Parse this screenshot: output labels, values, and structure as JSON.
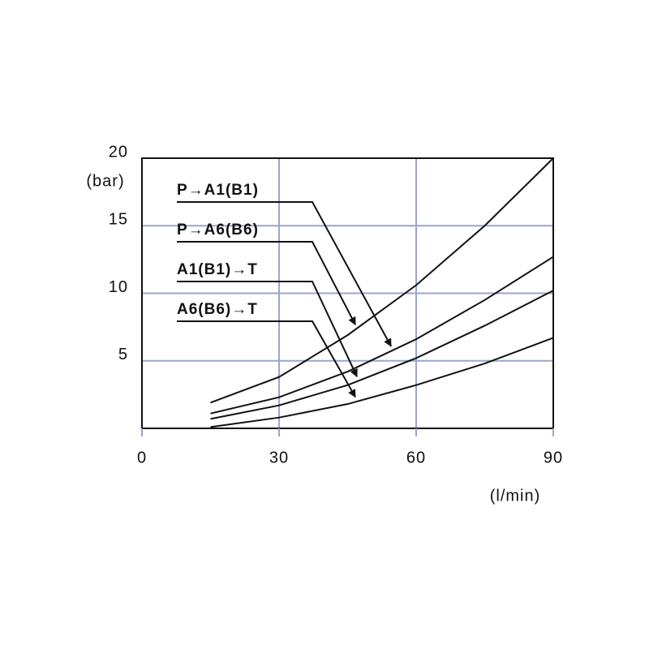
{
  "chart_data": {
    "type": "line",
    "x_label": "(l/min)",
    "y_label": "(bar)",
    "x": [
      15,
      30,
      45,
      60,
      75,
      90
    ],
    "series": [
      {
        "name": "P→A6(B6)",
        "color": "#111111",
        "values": [
          1.9,
          3.8,
          6.9,
          10.6,
          15.0,
          20
        ]
      },
      {
        "name": "P→A1(B1)",
        "color": "#111111",
        "values": [
          1.1,
          2.3,
          4.2,
          6.6,
          9.5,
          12.7
        ]
      },
      {
        "name": "A1(B1)→T",
        "color": "#111111",
        "values": [
          0.7,
          1.7,
          3.2,
          5.2,
          7.6,
          10.2
        ]
      },
      {
        "name": "A6(B6)→T",
        "color": "#111111",
        "values": [
          0.1,
          0.8,
          1.8,
          3.2,
          4.8,
          6.7
        ]
      }
    ],
    "xlim": [
      0,
      90
    ],
    "xticks": [
      0,
      30,
      60,
      90
    ],
    "ylim": [
      0,
      20
    ],
    "yticks": [
      5,
      10,
      15,
      20
    ],
    "grid": true,
    "grid_color": "#9aa6cc"
  }
}
